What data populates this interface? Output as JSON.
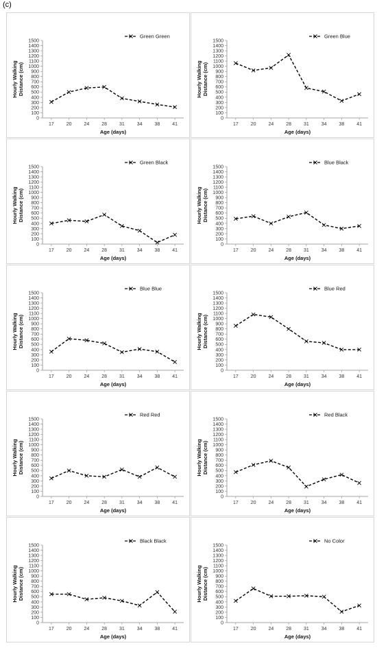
{
  "figure_label": "(c)",
  "chart_data": [
    {
      "type": "line",
      "legend": "Green Green",
      "xlabel": "Age (days)",
      "ylabel": "Hourly Walking Distance (cm)",
      "categories": [
        "17",
        "20",
        "24",
        "28",
        "31",
        "34",
        "38",
        "41"
      ],
      "ylim": [
        0,
        1500
      ],
      "yticks_step": 100,
      "series": [
        {
          "name": "Green Green",
          "values": [
            310,
            500,
            580,
            600,
            380,
            320,
            260,
            210
          ]
        }
      ]
    },
    {
      "type": "line",
      "legend": "Green Blue",
      "xlabel": "Age (days)",
      "ylabel": "Hourly Walking Distance (cm)",
      "categories": [
        "17",
        "20",
        "24",
        "28",
        "31",
        "34",
        "38",
        "41"
      ],
      "ylim": [
        0,
        1500
      ],
      "yticks_step": 100,
      "series": [
        {
          "name": "Green Blue",
          "values": [
            1060,
            920,
            970,
            1220,
            580,
            510,
            330,
            460
          ]
        }
      ]
    },
    {
      "type": "line",
      "legend": "Green Black",
      "xlabel": "Age (days)",
      "ylabel": "Hourly Walking Distance (cm)",
      "categories": [
        "17",
        "20",
        "24",
        "28",
        "31",
        "34",
        "38",
        "41"
      ],
      "ylim": [
        0,
        1500
      ],
      "yticks_step": 100,
      "series": [
        {
          "name": "Green Black",
          "values": [
            400,
            460,
            440,
            570,
            350,
            260,
            30,
            180
          ]
        }
      ]
    },
    {
      "type": "line",
      "legend": "Blue Black",
      "xlabel": "Age (days)",
      "ylabel": "Hourly Walking Distance (cm)",
      "categories": [
        "17",
        "20",
        "24",
        "28",
        "31",
        "34",
        "38",
        "41"
      ],
      "ylim": [
        0,
        1500
      ],
      "yticks_step": 100,
      "series": [
        {
          "name": "Blue Black",
          "values": [
            490,
            540,
            400,
            530,
            610,
            370,
            300,
            350
          ]
        }
      ]
    },
    {
      "type": "line",
      "legend": "Blue Blue",
      "xlabel": "Age (days)",
      "ylabel": "Hourly Walking Distance (cm)",
      "categories": [
        "17",
        "20",
        "24",
        "28",
        "31",
        "34",
        "38",
        "41"
      ],
      "ylim": [
        0,
        1500
      ],
      "yticks_step": 100,
      "series": [
        {
          "name": "Blue Blue",
          "values": [
            360,
            610,
            580,
            520,
            350,
            410,
            360,
            160
          ]
        }
      ]
    },
    {
      "type": "line",
      "legend": "Blue Red",
      "xlabel": "Age (days)",
      "ylabel": "Hourly Walking Distance (cm)",
      "categories": [
        "17",
        "20",
        "24",
        "28",
        "31",
        "34",
        "38",
        "41"
      ],
      "ylim": [
        0,
        1500
      ],
      "yticks_step": 100,
      "series": [
        {
          "name": "Blue Red",
          "values": [
            860,
            1080,
            1030,
            800,
            560,
            530,
            400,
            400
          ]
        }
      ]
    },
    {
      "type": "line",
      "legend": "Red Red",
      "xlabel": "Age (days)",
      "ylabel": "Hourly Walking Distance (cm)",
      "categories": [
        "17",
        "20",
        "24",
        "28",
        "31",
        "34",
        "38",
        "41"
      ],
      "ylim": [
        0,
        1500
      ],
      "yticks_step": 100,
      "series": [
        {
          "name": "Red Red",
          "values": [
            350,
            500,
            400,
            380,
            520,
            380,
            560,
            380
          ]
        }
      ]
    },
    {
      "type": "line",
      "legend": "Red Black",
      "xlabel": "Age (days)",
      "ylabel": "Hourly Walking Distance (cm)",
      "categories": [
        "17",
        "20",
        "24",
        "28",
        "31",
        "34",
        "38",
        "41"
      ],
      "ylim": [
        0,
        1500
      ],
      "yticks_step": 100,
      "series": [
        {
          "name": "Red Black",
          "values": [
            470,
            610,
            690,
            560,
            190,
            330,
            420,
            260
          ]
        }
      ]
    },
    {
      "type": "line",
      "legend": "Black Black",
      "xlabel": "Age (days)",
      "ylabel": "Hourly Walking Distance (cm)",
      "categories": [
        "17",
        "20",
        "24",
        "28",
        "31",
        "34",
        "38",
        "41"
      ],
      "ylim": [
        0,
        1500
      ],
      "yticks_step": 100,
      "series": [
        {
          "name": "Black Black",
          "values": [
            550,
            550,
            450,
            480,
            420,
            330,
            590,
            210
          ]
        }
      ]
    },
    {
      "type": "line",
      "legend": "No Color",
      "xlabel": "Age (days)",
      "ylabel": "Hourly Walking Distance (cm)",
      "categories": [
        "17",
        "20",
        "24",
        "28",
        "31",
        "34",
        "38",
        "41"
      ],
      "ylim": [
        0,
        1500
      ],
      "yticks_step": 100,
      "series": [
        {
          "name": "No Color",
          "values": [
            420,
            660,
            510,
            510,
            520,
            500,
            210,
            330
          ]
        }
      ]
    }
  ]
}
